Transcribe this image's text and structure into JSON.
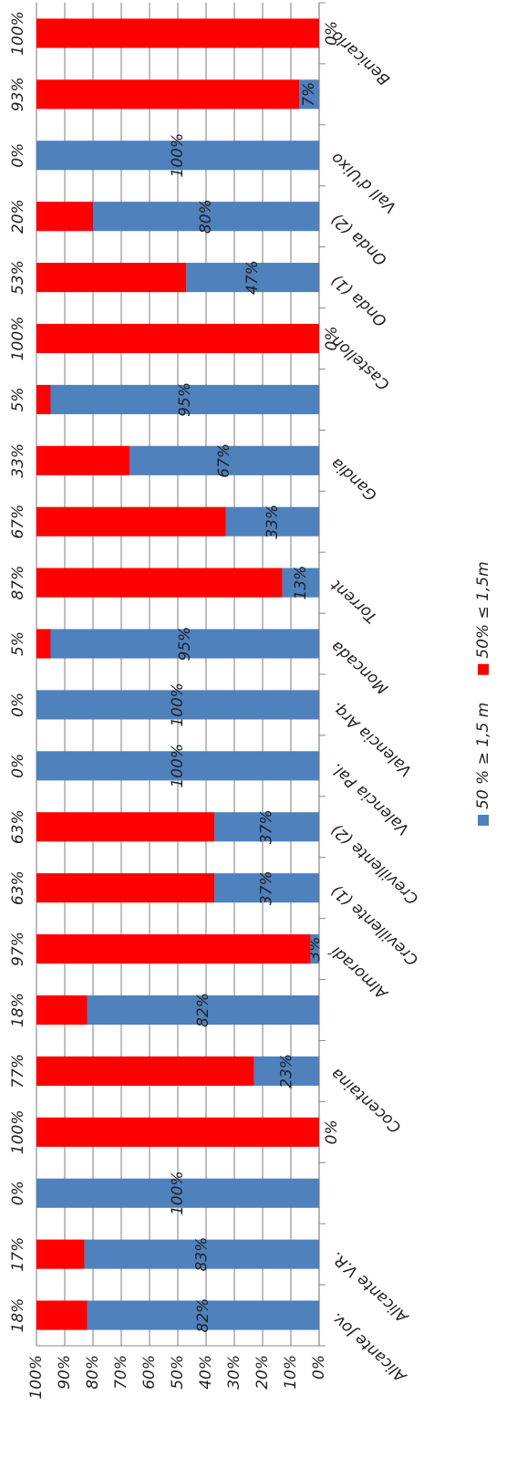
{
  "chart_data": {
    "type": "stacked_bar",
    "categories": [
      "Alicante Jov.",
      "Alicante V.R.",
      null,
      null,
      "Cocentaina",
      null,
      "Almoradí",
      "Crevillente (1)",
      "Crevillente (2)",
      "Valencia Pal.",
      "Valencia Arq.",
      "Moncada",
      "Torrent",
      null,
      "Gandia",
      null,
      "Castellon",
      "Onda (1)",
      "Onda (2)",
      "Vall d'Uixo",
      null,
      "Benicarlo"
    ],
    "series": [
      {
        "name": "50 % ≥ 1,5 m",
        "color": "#4f81bd",
        "values": [
          82,
          83,
          100,
          0,
          23,
          82,
          3,
          37,
          37,
          100,
          100,
          95,
          13,
          33,
          67,
          95,
          0,
          47,
          80,
          100,
          7,
          0
        ],
        "value_labels": [
          "82%",
          "83%",
          "100%",
          "0%",
          "23%",
          "82%",
          "3%",
          "37%",
          "37%",
          "100%",
          "100%",
          "95%",
          "13%",
          "33%",
          "67%",
          "95%",
          "0%",
          "47%",
          "80%",
          "100%",
          "7%",
          "0%"
        ]
      },
      {
        "name": "50% ≤ 1,5m",
        "color": "#ff0000",
        "values": [
          18,
          17,
          0,
          100,
          77,
          18,
          97,
          63,
          63,
          0,
          0,
          5,
          87,
          67,
          33,
          5,
          100,
          53,
          20,
          0,
          93,
          100
        ],
        "value_labels": [
          "18%",
          "17%",
          "0%",
          "100%",
          "77%",
          "18%",
          "97%",
          "63%",
          "63%",
          "0%",
          "0%",
          "5%",
          "87%",
          "67%",
          "33%",
          "5%",
          "100%",
          "53%",
          "20%",
          "0%",
          "93%",
          "100%"
        ]
      }
    ],
    "ylim": [
      0,
      100
    ],
    "yticks": [
      {
        "value": 0,
        "label": "0%"
      },
      {
        "value": 10,
        "label": "10%"
      },
      {
        "value": 20,
        "label": "20%"
      },
      {
        "value": 30,
        "label": "30%"
      },
      {
        "value": 40,
        "label": "40%"
      },
      {
        "value": 50,
        "label": "50%"
      },
      {
        "value": 60,
        "label": "60%"
      },
      {
        "value": 70,
        "label": "70%"
      },
      {
        "value": 80,
        "label": "80%"
      },
      {
        "value": 90,
        "label": "90%"
      },
      {
        "value": 100,
        "label": "100%"
      }
    ],
    "grid": true,
    "legend": "bottom"
  }
}
